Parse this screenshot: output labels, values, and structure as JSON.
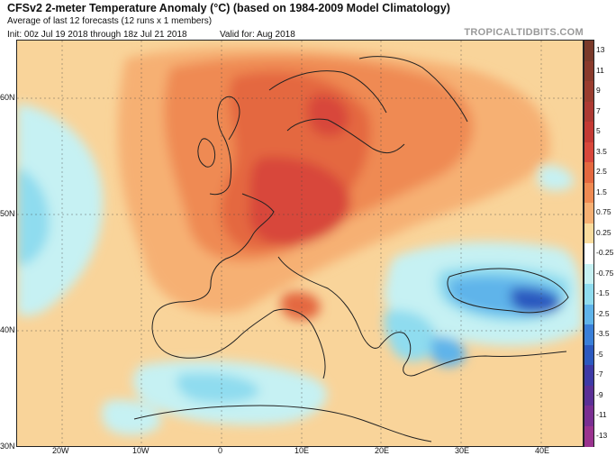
{
  "header": {
    "title": "CFSv2 2-meter Temperature Anomaly (°C) (based on 1984-2009 Model Climatology)",
    "subtitle": "Average of last 12 forecasts (12 runs x 1 members)",
    "init": "Init: 00z Jul 19 2018 through 18z Jul 21 2018",
    "valid": "Valid for: Aug 2018",
    "brand": "TROPICALTIDBITS.COM"
  },
  "axes": {
    "lat_labels": [
      "60N",
      "50N",
      "40N",
      "30N"
    ],
    "lon_labels": [
      "20W",
      "10W",
      "0",
      "10E",
      "20E",
      "30E",
      "40E"
    ]
  },
  "colorbar": {
    "labels": [
      "13",
      "11",
      "9",
      "7",
      "5",
      "3.5",
      "2.5",
      "1.5",
      "0.75",
      "0.25",
      "-0.25",
      "-0.75",
      "-1.5",
      "-2.5",
      "-3.5",
      "-5",
      "-7",
      "-9",
      "-11",
      "-13"
    ],
    "colors": [
      "#7a3a2a",
      "#8a3b2c",
      "#9a3d2f",
      "#ad3a33",
      "#c43a34",
      "#d8473b",
      "#e4683f",
      "#ef8a52",
      "#f6b073",
      "#fadc9e",
      "#ffffff",
      "#c6f1f3",
      "#8fdcef",
      "#5fb4ea",
      "#3a7fd8",
      "#2c59bf",
      "#3e3aa6",
      "#5b3096",
      "#7a2f92",
      "#9a338f"
    ]
  },
  "map": {
    "background_color": "#f9d49a",
    "positive_colors": [
      "#f6b073",
      "#ef8a52",
      "#e4683f",
      "#d8473b"
    ],
    "negative_colors": [
      "#c6f1f3",
      "#8fdcef",
      "#5fb4ea",
      "#2c59bf"
    ]
  }
}
